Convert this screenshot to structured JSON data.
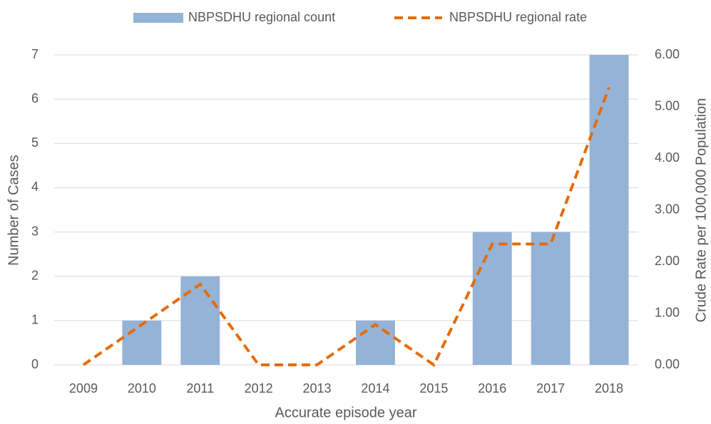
{
  "chart_data": {
    "type": "bar",
    "categories": [
      "2009",
      "2010",
      "2011",
      "2012",
      "2013",
      "2014",
      "2015",
      "2016",
      "2017",
      "2018"
    ],
    "series": [
      {
        "name": "NBPSDHU regional count",
        "type": "bar",
        "color": "#95b3d7",
        "values": [
          0,
          1,
          2,
          0,
          0,
          1,
          0,
          3,
          3,
          7
        ]
      },
      {
        "name": "NBPSDHU regional rate",
        "type": "line",
        "axis": "y2",
        "color": "#e46c0a",
        "values": [
          0,
          0.78,
          1.56,
          0,
          0,
          0.78,
          0,
          2.34,
          2.34,
          5.37
        ]
      }
    ],
    "xlabel": "Accurate episode year",
    "ylabel": "Number of Cases",
    "y2label": "Crude Rate per 100,000 Population",
    "ylim": [
      0,
      7
    ],
    "yticks": [
      0,
      1,
      2,
      3,
      4,
      5,
      6,
      7
    ],
    "y2lim": [
      0,
      6
    ],
    "y2ticks": [
      {
        "value": 0,
        "label": "0.00"
      },
      {
        "value": 1,
        "label": "1.00"
      },
      {
        "value": 2,
        "label": "2.00"
      },
      {
        "value": 3,
        "label": "3.00"
      },
      {
        "value": 4,
        "label": "4.00"
      },
      {
        "value": 5,
        "label": "5.00"
      },
      {
        "value": 6,
        "label": "6.00"
      }
    ],
    "grid": true,
    "legend": "top"
  }
}
